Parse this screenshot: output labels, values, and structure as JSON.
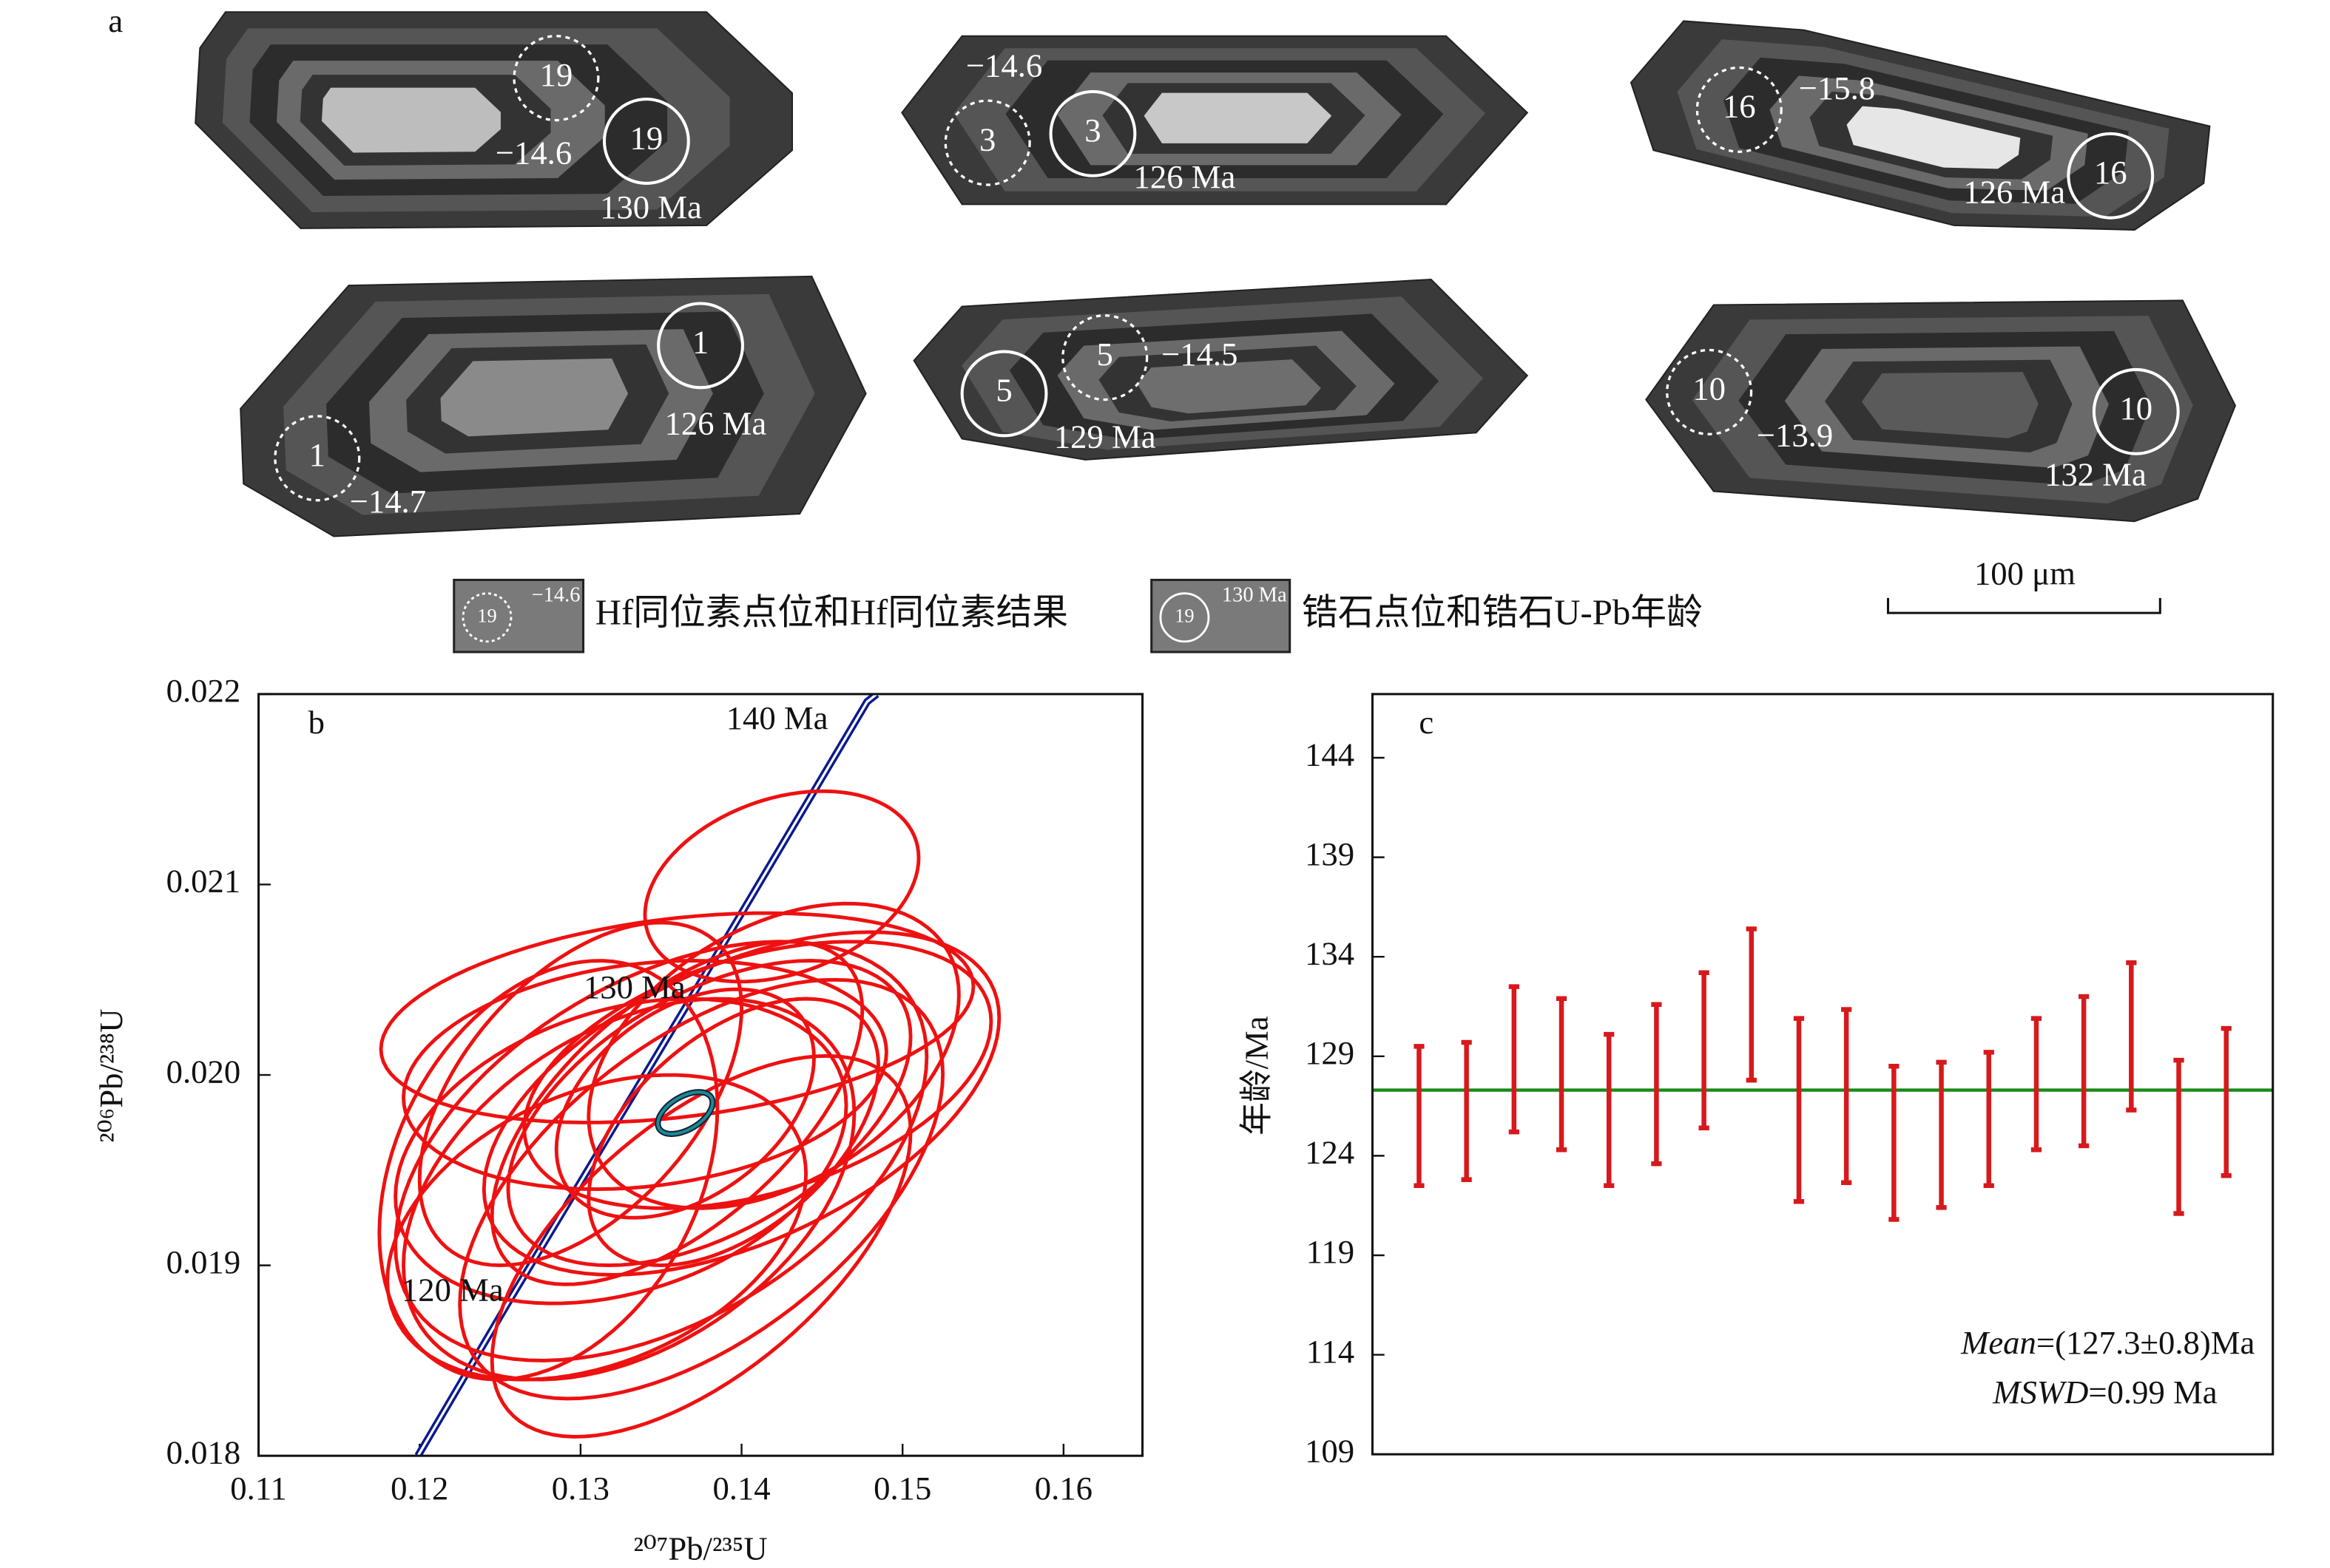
{
  "figure_a": {
    "label": "a",
    "grains": [
      {
        "spot": "19",
        "hf": "−14.6",
        "age": "130 Ma"
      },
      {
        "spot": "3",
        "hf": "−14.6",
        "age": "126 Ma"
      },
      {
        "spot": "16",
        "hf": "−15.8",
        "age": "126 Ma"
      },
      {
        "spot": "1",
        "hf": "−14.7",
        "age": "126 Ma"
      },
      {
        "spot": "5",
        "hf": "−14.5",
        "age": "129 Ma"
      },
      {
        "spot": "10",
        "hf": "−13.9",
        "age": "132 Ma"
      }
    ],
    "legend": [
      {
        "spot": "19",
        "value": "−14.6",
        "text": "Hf同位素点位和Hf同位素结果"
      },
      {
        "spot": "19",
        "value": "130 Ma",
        "text": "锆石点位和锆石U-Pb年龄"
      }
    ],
    "scale_bar": "100 μm"
  },
  "chart_data": [
    {
      "type": "concordia",
      "panel": "b",
      "x_label": "²⁰⁷Pb/²³⁵U",
      "y_label": "²⁰⁶Pb/²³⁸U",
      "xlim": [
        0.11,
        0.1649
      ],
      "ylim": [
        0.018,
        0.022
      ],
      "xticks": [
        0.11,
        0.12,
        0.13,
        0.14,
        0.15,
        0.16
      ],
      "yticks": [
        0.018,
        0.019,
        {
          "value": 0.02,
          "label": "0.020"
        },
        0.021,
        0.022
      ],
      "concordia": {
        "color": "#0a1a8c",
        "x": [
          0.1199,
          0.1254,
          0.1367,
          0.1478,
          0.1484
        ],
        "y": [
          0.018,
          0.01879,
          0.02038,
          0.02196,
          0.022
        ]
      },
      "age_marks": [
        {
          "label": "120 Ma",
          "x": 0.1254,
          "y": 0.01879
        },
        {
          "label": "130 Ma",
          "x": 0.1367,
          "y": 0.02038
        },
        {
          "label": "140 Ma",
          "x": 0.1478,
          "y": 0.02196
        }
      ],
      "ellipses": {
        "color": "#ee1111",
        "x": [
          0.1425,
          0.136,
          0.14,
          0.141,
          0.135,
          0.138,
          0.133,
          0.1325,
          0.136,
          0.1375,
          0.131,
          0.1365,
          0.142,
          0.13,
          0.1375,
          0.134,
          0.1395,
          0.128
        ],
        "y": [
          0.02099,
          0.0203,
          0.01985,
          0.02,
          0.0196,
          0.0198,
          0.0194,
          0.0196,
          0.0198,
          0.0194,
          0.0192,
          0.01985,
          0.0201,
          0.0199,
          0.0191,
          0.02,
          0.0197,
          0.0195
        ],
        "x_err": [
          0.0085,
          0.0184,
          0.016,
          0.0145,
          0.0165,
          0.0125,
          0.014,
          0.014,
          0.0115,
          0.015,
          0.013,
          0.008,
          0.0115,
          0.01,
          0.013,
          0.015,
          0.009,
          0.0105
        ],
        "y_err": [
          0.0005,
          0.00055,
          0.0009,
          0.0007,
          0.0011,
          0.0008,
          0.001,
          0.0008,
          0.0009,
          0.0011,
          0.0008,
          0.0006,
          0.0008,
          0.0009,
          0.001,
          0.0006,
          0.0007,
          0.0011
        ],
        "rho": [
          0.3,
          0.3,
          0.5,
          0.4,
          0.45,
          0.5,
          0.4,
          0.3,
          0.6,
          0.55,
          0.35,
          0.4,
          0.4,
          0.5,
          0.6,
          0.2,
          0.5,
          0.3
        ]
      },
      "mean_ellipse": {
        "color": "#1b8a96",
        "x": 0.1365,
        "y": 0.0198,
        "x_err": 0.0017,
        "y_err": 0.00011,
        "rho": 0.5
      }
    },
    {
      "type": "errorbar",
      "panel": "c",
      "y_label": "年龄/Ma",
      "ylim": [
        109,
        147.2
      ],
      "yticks": [
        109,
        114,
        119,
        124,
        129,
        134,
        139,
        144
      ],
      "color": "#d7191c",
      "values": [
        126.0,
        126.25,
        128.85,
        128.1,
        126.3,
        127.6,
        129.3,
        131.6,
        126.3,
        127.0,
        124.65,
        125.05,
        125.85,
        127.6,
        128.25,
        130.0,
        124.95,
        126.7
      ],
      "errors": [
        3.5,
        3.45,
        3.65,
        3.8,
        3.8,
        4.0,
        3.9,
        3.8,
        4.6,
        4.35,
        3.85,
        3.65,
        3.35,
        3.3,
        3.75,
        3.7,
        3.85,
        3.7
      ],
      "mean": 127.3,
      "mean_color": "#178a17",
      "annotations": [
        {
          "italic": "Mean",
          "text": "=(127.3±0.8)Ma"
        },
        {
          "italic": "MSWD",
          "text": "=0.99 Ma"
        }
      ]
    }
  ]
}
